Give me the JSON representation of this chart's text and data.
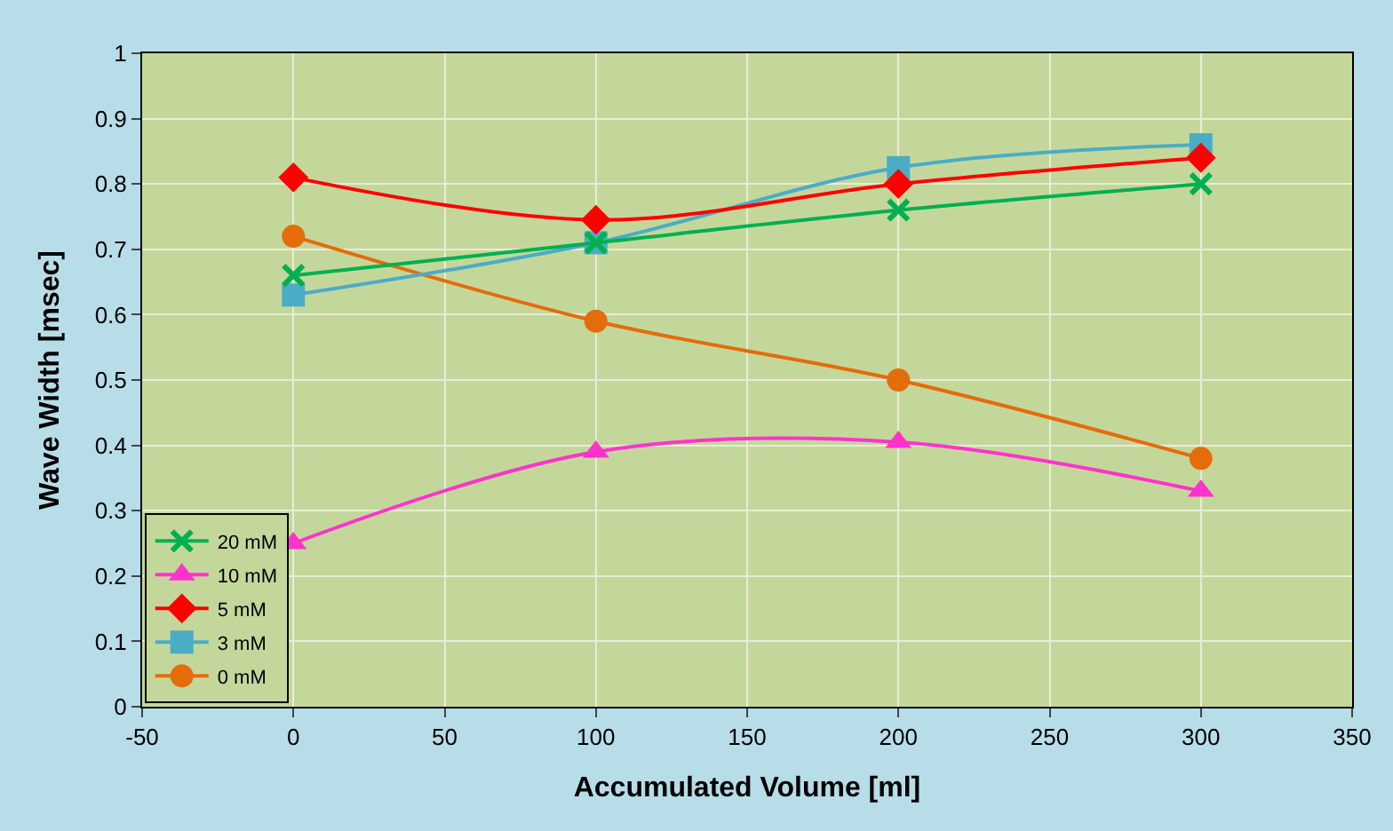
{
  "chart_data": {
    "type": "line",
    "xlabel": "Accumulated Volume [ml]",
    "ylabel": "Wave Width [msec]",
    "x": [
      0,
      100,
      200,
      300
    ],
    "series": [
      {
        "name": "20 mM",
        "color": "#00b050",
        "marker": "cross",
        "values": [
          0.66,
          0.71,
          0.76,
          0.8
        ]
      },
      {
        "name": "10 mM",
        "color": "#ff33cc",
        "marker": "triangle",
        "values": [
          0.25,
          0.39,
          0.405,
          0.33
        ]
      },
      {
        "name": "5 mM",
        "color": "#ff0000",
        "marker": "diamond",
        "values": [
          0.81,
          0.745,
          0.8,
          0.84
        ]
      },
      {
        "name": "3 mM",
        "color": "#4bacc6",
        "marker": "square",
        "values": [
          0.63,
          0.71,
          0.825,
          0.86
        ]
      },
      {
        "name": "0 mM",
        "color": "#e46c0a",
        "marker": "circle",
        "values": [
          0.72,
          0.59,
          0.5,
          0.38
        ]
      }
    ],
    "xlim": [
      -50,
      350
    ],
    "xticks": [
      -50,
      0,
      50,
      100,
      150,
      200,
      250,
      300,
      350
    ],
    "ylim": [
      0,
      1
    ],
    "yticks": [
      0,
      0.1,
      0.2,
      0.3,
      0.4,
      0.5,
      0.6,
      0.7,
      0.8,
      0.9,
      1
    ],
    "grid": true,
    "legend": "bottom left",
    "line_style": "solid"
  }
}
